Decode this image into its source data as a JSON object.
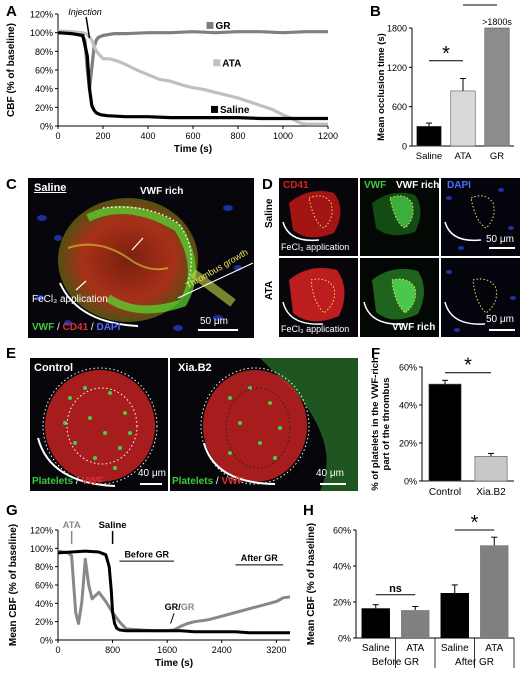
{
  "panels": {
    "A": "A",
    "B": "B",
    "C": "C",
    "D": "D",
    "E": "E",
    "F": "F",
    "G": "G",
    "H": "H"
  },
  "panelC": {
    "saline": "Saline",
    "vwf_rich": "VWF rich",
    "fecl3": "FeCl₃ application",
    "thrombus_growth": "Thrombus growth",
    "legend_vwf": "VWF",
    "legend_sep1": " / ",
    "legend_cd41": "CD41",
    "legend_sep2": " / ",
    "legend_dapi": "DAPI",
    "scale": "50 μm"
  },
  "panelD": {
    "col_cd41": "CD41",
    "col_vwf": "VWF",
    "col_dapi": "DAPI",
    "row_saline": "Saline",
    "row_ata": "ATA",
    "vwf_rich_1": "VWF rich",
    "vwf_rich_2": "VWF rich",
    "fecl3_1": "FeCl₃ application",
    "fecl3_2": "FeCl₃ application",
    "scale_1": "50 μm",
    "scale_2": "50 μm"
  },
  "panelE": {
    "control": "Control",
    "xia": "Xia.B2",
    "legend_platelets_1": "Platelets",
    "legend_sep_1": " / ",
    "legend_vwf_1": "VWF",
    "legend_platelets_2": "Platelets",
    "legend_sep_2": " / ",
    "legend_vwf_2": "VWF",
    "scale_1": "40 μm",
    "scale_2": "40 μm"
  },
  "colors": {
    "black": "#000000",
    "dark_gray": "#7f7f7f",
    "light_gray": "#c0c0c0",
    "red_stain": "#d42020",
    "green_stain": "#3ec83e",
    "blue_stain": "#3050e0"
  },
  "chart_data": [
    {
      "id": "A",
      "type": "line",
      "title": "",
      "xlabel": "Time (s)",
      "ylabel": "CBF (% of baseline)",
      "xlim": [
        0,
        1200
      ],
      "ylim": [
        0,
        120
      ],
      "xticks": [
        "0",
        "200",
        "400",
        "600",
        "800",
        "1000",
        "1200"
      ],
      "yticks": [
        "0%",
        "20%",
        "40%",
        "60%",
        "80%",
        "100%",
        "120%"
      ],
      "annotation": "Injection",
      "series": [
        {
          "name": "GR",
          "color": "#7f7f7f",
          "x": [
            0,
            60,
            100,
            120,
            130,
            140,
            150,
            160,
            170,
            180,
            200,
            250,
            300,
            400,
            500,
            600,
            700,
            800,
            900,
            1000,
            1100,
            1200
          ],
          "y": [
            100,
            101,
            99,
            92,
            60,
            40,
            62,
            84,
            92,
            95,
            97,
            99,
            99,
            100,
            100,
            101,
            100,
            101,
            101,
            100,
            101,
            101
          ]
        },
        {
          "name": "ATA",
          "color": "#c0c0c0",
          "x": [
            0,
            60,
            110,
            130,
            150,
            170,
            200,
            230,
            260,
            300,
            350,
            400,
            450,
            500,
            550,
            600,
            650,
            700,
            750,
            800,
            850,
            900,
            950,
            1000,
            1040,
            1060,
            1080,
            1100,
            1200
          ],
          "y": [
            102,
            101,
            100,
            98,
            92,
            80,
            72,
            72,
            70,
            66,
            60,
            55,
            50,
            48,
            44,
            41,
            39,
            36,
            33,
            30,
            26,
            22,
            18,
            12,
            8,
            5,
            3,
            2,
            2
          ]
        },
        {
          "name": "Saline",
          "color": "#000000",
          "x": [
            0,
            60,
            110,
            130,
            140,
            150,
            160,
            170,
            190,
            220,
            300,
            400,
            500,
            600,
            700,
            800,
            900,
            1000,
            1100,
            1200
          ],
          "y": [
            100,
            99,
            97,
            75,
            40,
            22,
            17,
            14,
            12,
            11,
            10,
            10,
            9,
            9,
            9,
            9,
            8,
            8,
            8,
            8
          ]
        }
      ]
    },
    {
      "id": "B",
      "type": "bar",
      "title": "",
      "xlabel": "",
      "ylabel": "Mean occlusion time (s)",
      "ylim": [
        0,
        1800
      ],
      "yticks": [
        "0",
        "600",
        "1200",
        "1800"
      ],
      "categories": [
        "Saline",
        "ATA",
        "GR"
      ],
      "values": [
        300,
        840,
        1800
      ],
      "errors": [
        50,
        190,
        0
      ],
      "colors": [
        "#000000",
        "#d9d9d9",
        "#8c8c8c"
      ],
      "annotation": ">1800s",
      "significance": [
        "*",
        "*"
      ]
    },
    {
      "id": "F",
      "type": "bar",
      "title": "",
      "xlabel": "",
      "ylabel": "% of platelets in the VWF-rich part of the thrombus",
      "ylim": [
        0,
        60
      ],
      "yticks": [
        "0%",
        "20%",
        "40%",
        "60%"
      ],
      "categories": [
        "Control",
        "Xia.B2"
      ],
      "values": [
        51,
        13
      ],
      "errors": [
        2,
        1.5
      ],
      "colors": [
        "#000000",
        "#c8c8c8"
      ],
      "significance": [
        "*"
      ]
    },
    {
      "id": "G",
      "type": "line",
      "title": "",
      "xlabel": "Time (s)",
      "ylabel": "Mean CBF (% of baseline)",
      "xlim": [
        0,
        3400
      ],
      "ylim": [
        0,
        120
      ],
      "xticks": [
        "0",
        "800",
        "1600",
        "2400",
        "3200"
      ],
      "yticks": [
        "0%",
        "20%",
        "40%",
        "60%",
        "80%",
        "100%",
        "120%"
      ],
      "annotations": [
        "ATA",
        "Saline",
        "Before GR",
        "After GR",
        "GR/",
        "GR"
      ],
      "series": [
        {
          "name": "",
          "color": "#888888",
          "x": [
            0,
            150,
            200,
            230,
            260,
            300,
            350,
            400,
            450,
            500,
            600,
            700,
            800,
            900,
            1000,
            1200,
            1400,
            1600,
            1700,
            1800,
            1900,
            2000,
            2200,
            2400,
            2600,
            2800,
            3000,
            3200,
            3300,
            3400
          ],
          "y": [
            97,
            95,
            92,
            60,
            30,
            18,
            42,
            88,
            60,
            45,
            52,
            42,
            30,
            20,
            12,
            11,
            10,
            10,
            11,
            15,
            18,
            20,
            22,
            26,
            30,
            34,
            38,
            42,
            46,
            47
          ]
        },
        {
          "name": "",
          "color": "#000000",
          "x": [
            0,
            200,
            400,
            600,
            700,
            750,
            780,
            800,
            830,
            860,
            900,
            1000,
            1200,
            1400,
            1600,
            1800,
            2000,
            2200,
            2400,
            2600,
            2800,
            3000,
            3200,
            3400
          ],
          "y": [
            95,
            96,
            97,
            96,
            93,
            80,
            55,
            30,
            18,
            13,
            11,
            10,
            10,
            10,
            10,
            10,
            9,
            9,
            9,
            9,
            8,
            8,
            8,
            8
          ]
        }
      ]
    },
    {
      "id": "H",
      "type": "bar",
      "title": "",
      "xlabel": "",
      "ylabel": "Mean CBF (% of baseline)",
      "ylim": [
        0,
        60
      ],
      "yticks": [
        "0%",
        "20%",
        "40%",
        "60%"
      ],
      "categories": [
        "Saline",
        "ATA",
        "Saline",
        "ATA"
      ],
      "groups": [
        "Before GR",
        "After GR"
      ],
      "values": [
        16.5,
        15.5,
        25,
        51.5
      ],
      "errors": [
        2,
        2,
        4.5,
        4.5
      ],
      "colors": [
        "#000000",
        "#808080",
        "#000000",
        "#808080"
      ],
      "significance": [
        "ns",
        "*"
      ]
    }
  ]
}
